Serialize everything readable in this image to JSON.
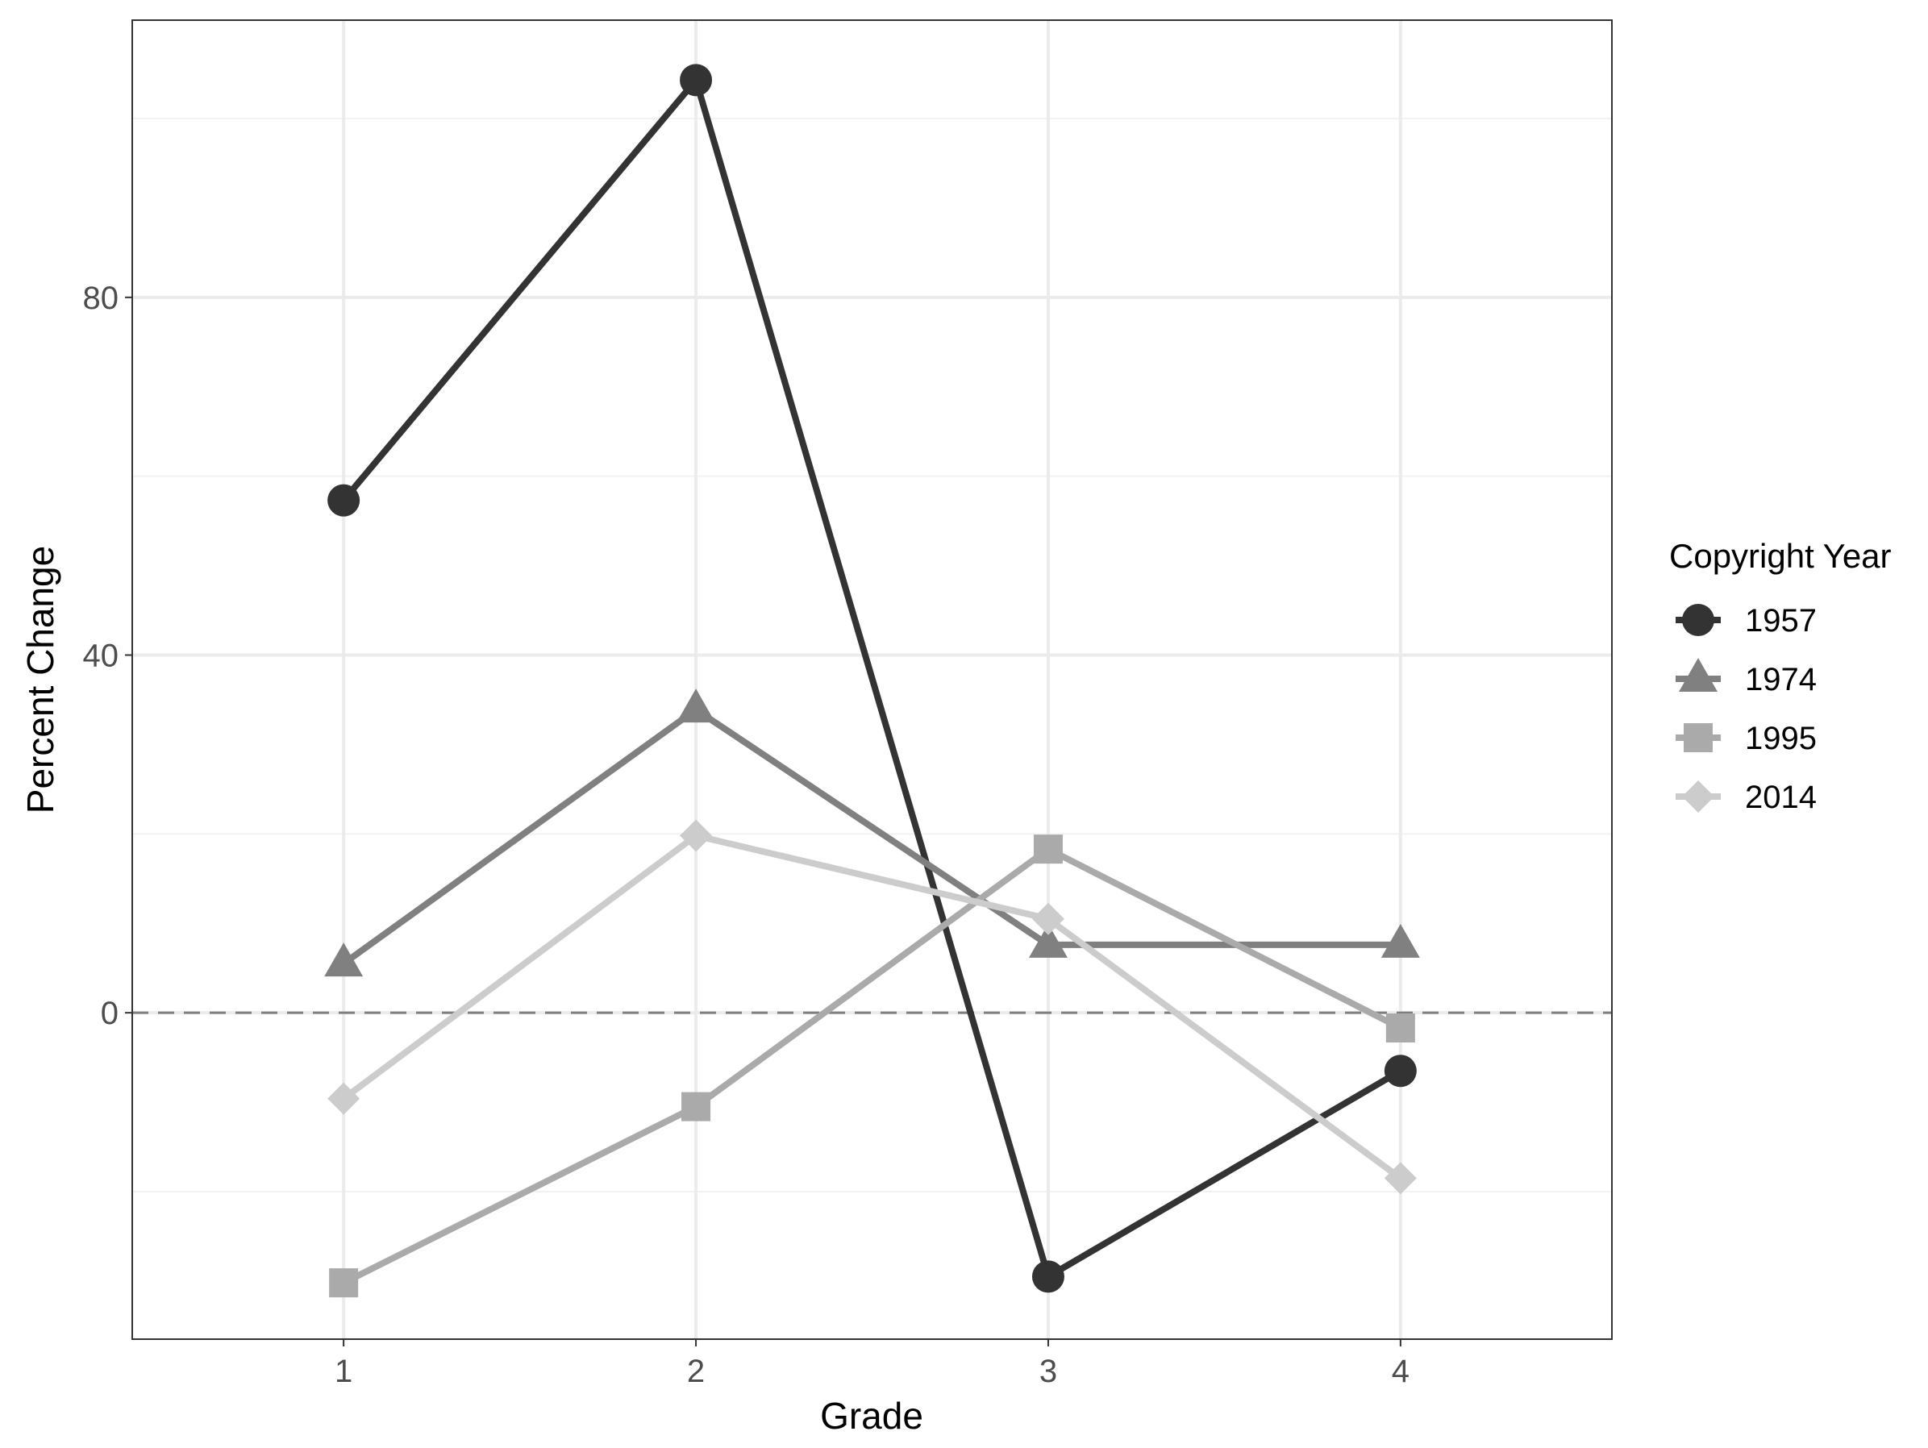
{
  "chart_data": {
    "type": "line",
    "xlabel": "Grade",
    "ylabel": "Percent Change",
    "x": [
      1,
      2,
      3,
      4
    ],
    "x_tick_labels": [
      "1",
      "2",
      "3",
      "4"
    ],
    "y_ticks": [
      0,
      40,
      80
    ],
    "y_tick_labels": [
      "0",
      "40",
      "80"
    ],
    "xlim": [
      0.4,
      4.6
    ],
    "ylim": [
      -36.5,
      111
    ],
    "grid": true,
    "reference_line": {
      "y": 0,
      "style": "dashed"
    },
    "legend": {
      "title": "Copyright Year",
      "position": "right"
    },
    "series": [
      {
        "name": "1957",
        "values": [
          57.3,
          104.3,
          -29.5,
          -6.5
        ],
        "color": "#333333",
        "marker": "circle"
      },
      {
        "name": "1974",
        "values": [
          5.5,
          33.9,
          7.6,
          7.6
        ],
        "color": "#808080",
        "marker": "triangle"
      },
      {
        "name": "1995",
        "values": [
          -30.2,
          -10.5,
          18.3,
          -1.7
        ],
        "color": "#aaaaaa",
        "marker": "square"
      },
      {
        "name": "2014",
        "values": [
          -9.6,
          19.8,
          10.5,
          -18.5
        ],
        "color": "#cccccc",
        "marker": "diamond"
      }
    ]
  }
}
